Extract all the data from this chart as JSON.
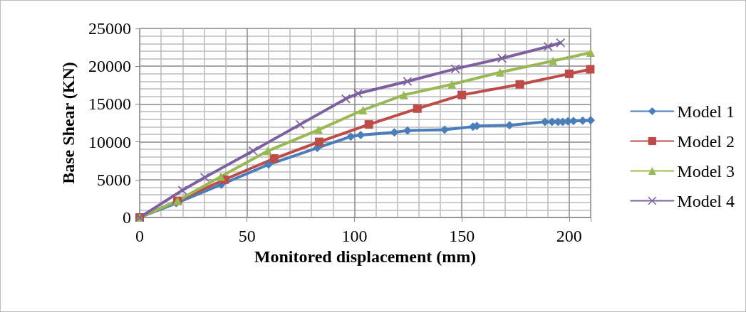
{
  "chart_data": {
    "type": "line",
    "xlabel": "Monitored displacement (mm)",
    "ylabel": "Base Shear (KN)",
    "xlim": [
      0,
      210
    ],
    "xticks": [
      0,
      50,
      100,
      150,
      200
    ],
    "ylim": [
      0,
      25000
    ],
    "yticks": [
      0,
      5000,
      10000,
      15000,
      20000,
      25000
    ],
    "grid": true,
    "legend": "right",
    "series": [
      {
        "name": "Model 1",
        "color": "#4a7ebb",
        "marker": "diamond",
        "x": [
          0,
          17,
          38,
          60,
          82.7,
          98.3,
          102.9,
          118.6,
          124.7,
          142,
          155.2,
          157,
          172.2,
          188.7,
          192,
          194.8,
          197,
          199.4,
          202,
          206.3,
          210
        ],
        "values": [
          0,
          1900,
          4350,
          7000,
          9200,
          10700,
          10900,
          11260,
          11500,
          11600,
          12000,
          12100,
          12200,
          12650,
          12650,
          12650,
          12650,
          12700,
          12750,
          12800,
          12850
        ]
      },
      {
        "name": "Model 2",
        "color": "#be4b48",
        "marker": "square",
        "x": [
          0,
          17.6,
          39.5,
          62.6,
          83.6,
          106.7,
          129.3,
          150,
          177,
          200,
          209.8
        ],
        "values": [
          0,
          2200,
          5000,
          7800,
          10000,
          12300,
          14400,
          16200,
          17600,
          19000,
          19600
        ]
      },
      {
        "name": "Model 3",
        "color": "#98b954",
        "marker": "triangle",
        "x": [
          0,
          17.6,
          37.8,
          59.7,
          83.3,
          104,
          123,
          145.4,
          167.8,
          192.5,
          210
        ],
        "values": [
          0,
          2200,
          5400,
          8800,
          11600,
          14200,
          16200,
          17600,
          19200,
          20700,
          21800
        ]
      },
      {
        "name": "Model 4",
        "color": "#7d60a0",
        "marker": "cross",
        "x": [
          0,
          19.9,
          30.3,
          52.8,
          74.7,
          96,
          101.7,
          124.7,
          147,
          168.7,
          190.2,
          196
        ],
        "values": [
          0,
          3600,
          5300,
          8800,
          12300,
          15700,
          16400,
          18000,
          19650,
          21050,
          22600,
          23100
        ]
      }
    ]
  }
}
